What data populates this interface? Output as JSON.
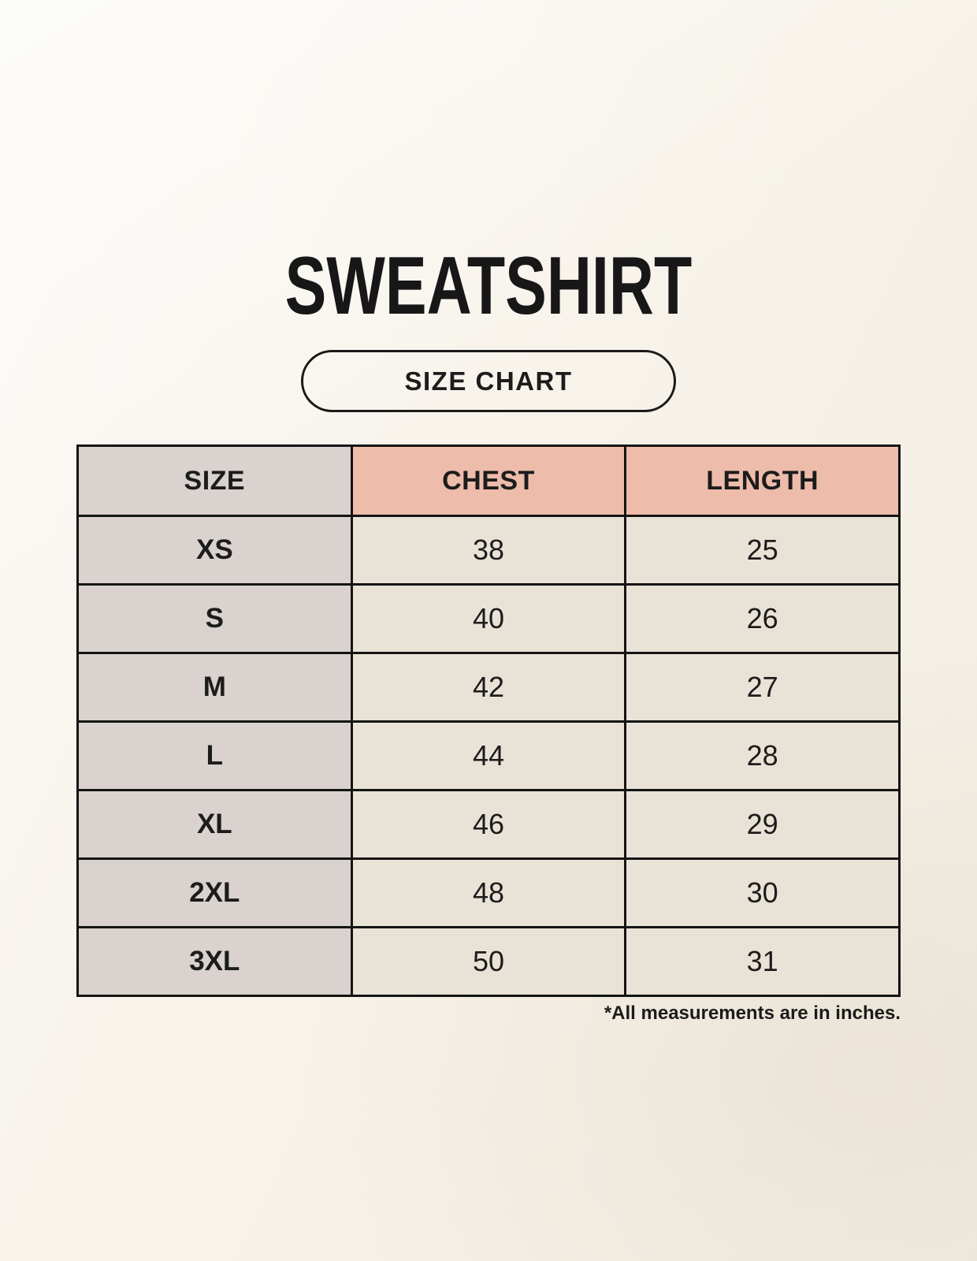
{
  "page": {
    "title": "SWEATSHIRT",
    "size_chart_button_label": "SIZE CHART",
    "footnote": "*All measurements are in inches."
  },
  "colors": {
    "background": "#f8f4ec",
    "accent": "#eebcab",
    "size_col": "#d9d2ce",
    "cell": "#e9e2d6",
    "border": "#141414",
    "text": "#1c1c1c"
  },
  "chart_data": {
    "type": "table",
    "title": "SWEATSHIRT",
    "subtitle": "SIZE CHART",
    "columns": [
      "SIZE",
      "CHEST",
      "LENGTH"
    ],
    "rows": [
      [
        "XS",
        "38",
        "25"
      ],
      [
        "S",
        "40",
        "26"
      ],
      [
        "M",
        "42",
        "27"
      ],
      [
        "L",
        "44",
        "28"
      ],
      [
        "XL",
        "46",
        "29"
      ],
      [
        "2XL",
        "48",
        "30"
      ],
      [
        "3XL",
        "50",
        "31"
      ]
    ],
    "units_note": "*All measurements are in inches.",
    "layout": {
      "header_fill_size": "#d9d2ce",
      "header_fill_measurements": "#eebcab",
      "size_column_fill": "#d9d2ce",
      "value_cell_fill": "#e9e2d6",
      "grid": "on"
    }
  }
}
